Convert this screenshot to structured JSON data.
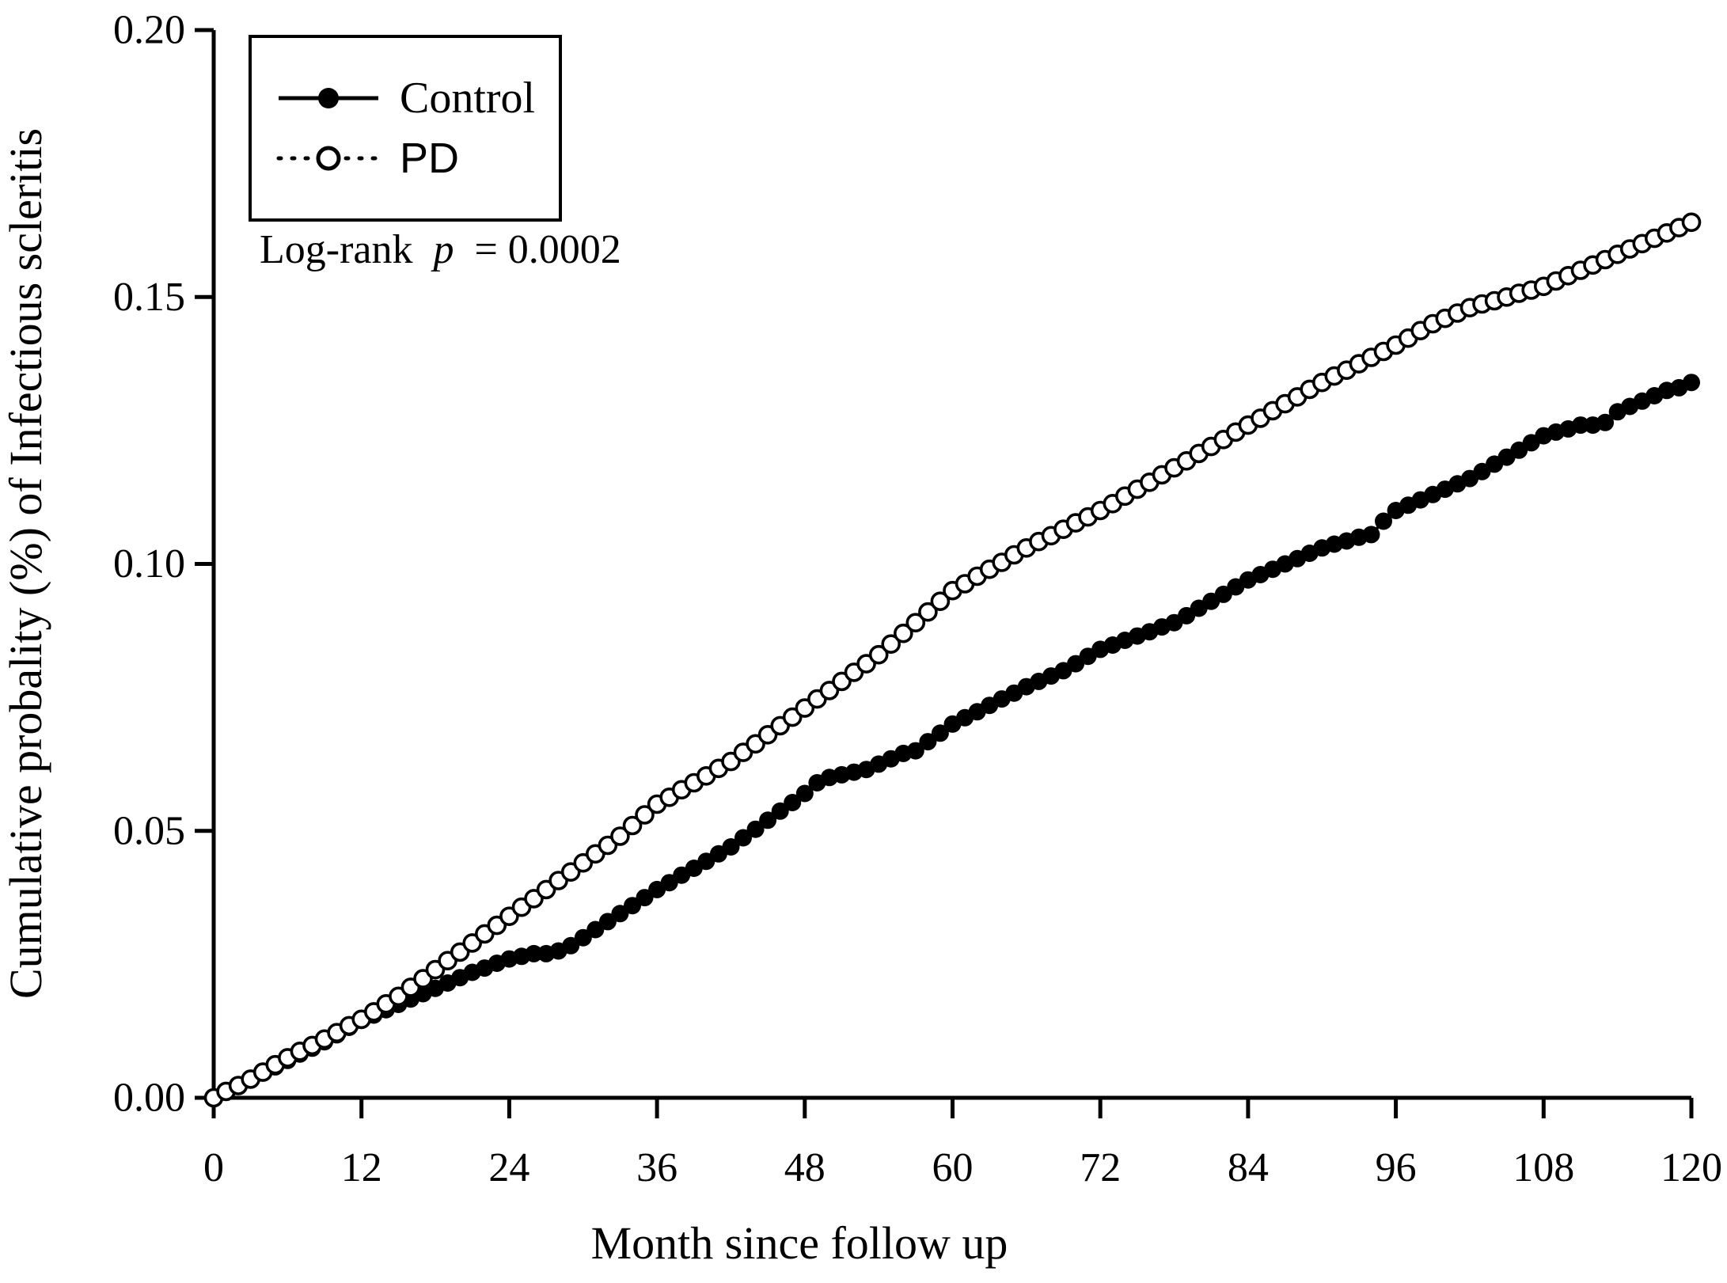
{
  "figure": {
    "background_color": "#ffffff",
    "foreground_color": "#000000"
  },
  "legend": {
    "items": [
      {
        "label": "Control",
        "marker": "filled-circle",
        "line": "solid"
      },
      {
        "label": "PD",
        "marker": "open-circle",
        "line": "dotted"
      }
    ]
  },
  "annotation": {
    "prefix": "Log-rank",
    "p_symbol": "p",
    "rest": "= 0.0002",
    "p_value": "0.0002"
  },
  "chart_data": {
    "type": "line",
    "title": "",
    "xlabel": "Month since follow up",
    "ylabel": "Cumulative probality (%) of Infectious scleritis",
    "xlim": [
      0,
      120
    ],
    "ylim": [
      0.0,
      0.2
    ],
    "grid": false,
    "legend_position": "top-left",
    "x_ticks": [
      0,
      12,
      24,
      36,
      48,
      60,
      72,
      84,
      96,
      108,
      120
    ],
    "y_ticks": [
      0.0,
      0.05,
      0.1,
      0.15,
      0.2
    ],
    "y_tick_labels": [
      "0.00",
      "0.05",
      "0.10",
      "0.15",
      "0.20"
    ],
    "x_start_month": 0,
    "x_interval_months": 1,
    "series": [
      {
        "name": "Control",
        "marker": "filled-circle",
        "line": "solid",
        "color": "#000000",
        "values": [
          0,
          0.0012,
          0.0023,
          0.0035,
          0.0047,
          0.0058,
          0.007,
          0.0082,
          0.0093,
          0.0105,
          0.0118,
          0.0132,
          0.0145,
          0.0155,
          0.0165,
          0.0175,
          0.0185,
          0.0195,
          0.0205,
          0.0215,
          0.0225,
          0.0235,
          0.0243,
          0.0252,
          0.026,
          0.0265,
          0.027,
          0.027,
          0.0275,
          0.0285,
          0.03,
          0.0315,
          0.033,
          0.0345,
          0.036,
          0.0375,
          0.039,
          0.0403,
          0.0417,
          0.043,
          0.0443,
          0.0457,
          0.047,
          0.0487,
          0.0503,
          0.052,
          0.0537,
          0.0553,
          0.057,
          0.059,
          0.06,
          0.0605,
          0.061,
          0.0615,
          0.0625,
          0.0635,
          0.0645,
          0.065,
          0.0667,
          0.0683,
          0.07,
          0.0712,
          0.0723,
          0.0735,
          0.0747,
          0.0758,
          0.077,
          0.078,
          0.079,
          0.08,
          0.0813,
          0.0827,
          0.084,
          0.0848,
          0.0857,
          0.0865,
          0.0873,
          0.0882,
          0.089,
          0.0903,
          0.0917,
          0.093,
          0.0943,
          0.0957,
          0.097,
          0.098,
          0.099,
          0.1,
          0.101,
          0.102,
          0.103,
          0.1037,
          0.1043,
          0.105,
          0.1055,
          0.108,
          0.11,
          0.111,
          0.112,
          0.113,
          0.114,
          0.115,
          0.116,
          0.1173,
          0.1187,
          0.12,
          0.1213,
          0.1227,
          0.124,
          0.1247,
          0.1253,
          0.126,
          0.126,
          0.1265,
          0.1285,
          0.1295,
          0.1305,
          0.1315,
          0.1325,
          0.133,
          0.134
        ]
      },
      {
        "name": "PD",
        "marker": "open-circle",
        "line": "dotted",
        "color": "#000000",
        "values": [
          0,
          0.0012,
          0.0023,
          0.0035,
          0.0048,
          0.0062,
          0.0075,
          0.0087,
          0.0098,
          0.011,
          0.0122,
          0.0135,
          0.0147,
          0.0161,
          0.0176,
          0.019,
          0.0207,
          0.0223,
          0.024,
          0.0257,
          0.0273,
          0.029,
          0.0307,
          0.0323,
          0.034,
          0.0357,
          0.0373,
          0.039,
          0.0407,
          0.0423,
          0.044,
          0.0457,
          0.0473,
          0.049,
          0.051,
          0.053,
          0.055,
          0.0563,
          0.0577,
          0.059,
          0.0603,
          0.0617,
          0.063,
          0.0647,
          0.0663,
          0.068,
          0.0697,
          0.0713,
          0.073,
          0.0747,
          0.0763,
          0.078,
          0.0797,
          0.0813,
          0.083,
          0.085,
          0.087,
          0.089,
          0.091,
          0.093,
          0.095,
          0.0963,
          0.0977,
          0.099,
          0.1003,
          0.1017,
          0.103,
          0.1042,
          0.1053,
          0.1065,
          0.1077,
          0.1088,
          0.11,
          0.1113,
          0.1127,
          0.114,
          0.1153,
          0.1167,
          0.118,
          0.1193,
          0.1207,
          0.122,
          0.1233,
          0.1247,
          0.126,
          0.1273,
          0.1287,
          0.13,
          0.1313,
          0.1327,
          0.134,
          0.1352,
          0.1363,
          0.1375,
          0.1387,
          0.1398,
          0.141,
          0.1423,
          0.1437,
          0.145,
          0.146,
          0.147,
          0.148,
          0.1487,
          0.1493,
          0.15,
          0.1507,
          0.1513,
          0.152,
          0.153,
          0.154,
          0.155,
          0.156,
          0.157,
          0.158,
          0.159,
          0.16,
          0.161,
          0.162,
          0.163,
          0.164
        ]
      }
    ]
  }
}
